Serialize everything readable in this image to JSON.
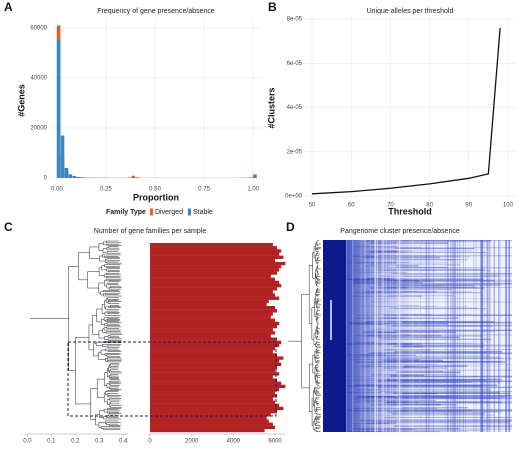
{
  "chart_data": [
    {
      "type": "histogram",
      "panel_label": "A",
      "title": "Frequency of gene presence/absence",
      "x_label": "Proportion",
      "y_label": "#Genes",
      "bins": [
        0,
        0.02,
        0.04,
        0.06,
        0.08,
        0.1,
        0.12,
        0.14,
        0.16,
        0.18,
        0.2,
        0.22,
        0.24,
        0.26,
        0.28,
        0.3,
        0.32,
        0.34,
        0.36,
        0.38,
        0.4,
        0.42,
        0.44,
        0.46,
        0.48,
        0.5,
        0.52,
        0.54,
        0.56,
        0.58,
        0.6,
        0.62,
        0.64,
        0.66,
        0.68,
        0.7,
        0.72,
        0.74,
        0.76,
        0.78,
        0.8,
        0.82,
        0.84,
        0.86,
        0.88,
        0.9,
        0.92,
        0.94,
        0.96,
        0.98,
        1.0,
        1.02
      ],
      "series": [
        {
          "name": "Diverged",
          "color": "#d9622b",
          "values": [
            61000,
            9000,
            2500,
            1200,
            600,
            400,
            300,
            200,
            150,
            120,
            100,
            90,
            80,
            70,
            60,
            60,
            60,
            80,
            200,
            900,
            300,
            80,
            60,
            50,
            50,
            50,
            40,
            40,
            40,
            40,
            40,
            40,
            40,
            40,
            40,
            40,
            40,
            40,
            40,
            40,
            40,
            40,
            40,
            40,
            40,
            50,
            60,
            80,
            120,
            300,
            1500
          ]
        },
        {
          "name": "Stable",
          "color": "#3a86c4",
          "values": [
            55000,
            17000,
            4000,
            1500,
            800,
            400,
            250,
            150,
            100,
            80,
            60,
            50,
            40,
            30,
            30,
            30,
            30,
            30,
            40,
            60,
            40,
            30,
            20,
            20,
            20,
            20,
            20,
            20,
            20,
            20,
            20,
            20,
            20,
            20,
            20,
            20,
            20,
            20,
            20,
            20,
            20,
            20,
            20,
            20,
            20,
            20,
            30,
            40,
            60,
            150,
            800
          ]
        }
      ],
      "legend_title": "Family Type",
      "xlim": [
        -0.035,
        1.045
      ],
      "ylim": [
        -2000,
        64000
      ],
      "xticks": [
        {
          "value": 0,
          "label": "0.00"
        },
        {
          "value": 0.25,
          "label": "0.25"
        },
        {
          "value": 0.5,
          "label": "0.50"
        },
        {
          "value": 0.75,
          "label": "0.75"
        },
        {
          "value": 1,
          "label": "1.00"
        }
      ],
      "yticks": [
        0,
        20000,
        40000,
        60000
      ],
      "grid": true
    },
    {
      "type": "line",
      "panel_label": "B",
      "title": "Unique alleles per threshold",
      "x_label": "Threshold",
      "y_label": "#Clusters",
      "x": [
        50,
        60,
        70,
        80,
        90,
        95,
        98
      ],
      "series": [
        {
          "color": "#111111",
          "values": [
            1e-06,
            2e-06,
            3.5e-06,
            5.5e-06,
            8e-06,
            1e-05,
            7.6e-05
          ]
        }
      ],
      "xlim": [
        48.2,
        101.8
      ],
      "ylim": [
        -1.8e-06,
        8.14e-05
      ],
      "xticks": [
        50,
        60,
        70,
        80,
        90,
        100
      ],
      "yticks": [
        {
          "value": 0,
          "label": "0e+00"
        },
        {
          "value": 2e-05,
          "label": "2e-05"
        },
        {
          "value": 4e-05,
          "label": "4e-05"
        },
        {
          "value": 6e-05,
          "label": "6e-05"
        },
        {
          "value": 8e-05,
          "label": "8e-05"
        }
      ],
      "grid": true
    },
    {
      "type": "hbar",
      "panel_label": "C",
      "title": "Number of gene families per sample",
      "color": "#b22222",
      "values": [
        5900,
        6100,
        6300,
        6200,
        6400,
        6000,
        6500,
        6300,
        6200,
        6100,
        5800,
        6000,
        6200,
        6300,
        6100,
        5900,
        6000,
        6200,
        5700,
        5600,
        6000,
        6100,
        5900,
        5800,
        6000,
        6200,
        6100,
        5900,
        6000,
        5800,
        6100,
        6300,
        6200,
        6000,
        5900,
        6100,
        6400,
        6200,
        6300,
        6100,
        6000,
        6200,
        5900,
        6100,
        6300,
        6500,
        6200,
        6000,
        6100,
        5900,
        6000,
        6200,
        6400,
        6100,
        5800,
        5600,
        5700,
        5900,
        6000,
        5500
      ],
      "xlim": [
        -96,
        6480
      ],
      "xticks": [
        0,
        2000,
        4000,
        6000
      ],
      "dendrogram_lim": [
        -0.01,
        0.42
      ],
      "dendrogram_ticks": [
        {
          "value": 0,
          "label": "0.0"
        },
        0.1,
        0.2,
        0.3,
        0.4
      ]
    },
    {
      "type": "heatmap",
      "panel_label": "D",
      "title": "Pangenome cluster presence/absence"
    }
  ]
}
